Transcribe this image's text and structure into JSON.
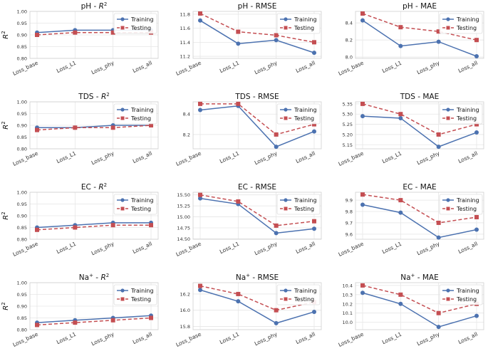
{
  "series_names": [
    "Training",
    "Testing"
  ],
  "colors": {
    "training": "#4c72b0",
    "testing": "#c44e52",
    "grid": "#e6e6e6",
    "axis": "#333333"
  },
  "chart_data": [
    {
      "type": "line",
      "title": "pH - R^2",
      "title_main": "pH - ",
      "title_sup": "2",
      "title_math": "R",
      "ylabel": "R",
      "ylabel_sup": "2",
      "categories": [
        "Loss_base",
        "Loss_L1",
        "Loss_phy",
        "Loss_all"
      ],
      "ylim": [
        0.8,
        1.0
      ],
      "yticks": [
        0.8,
        0.85,
        0.9,
        0.95,
        1.0
      ],
      "ytick_labels": [
        "0.80",
        "0.85",
        "0.90",
        "0.95",
        "1.00"
      ],
      "series": [
        {
          "name": "Training",
          "values": [
            0.91,
            0.92,
            0.92,
            0.92
          ]
        },
        {
          "name": "Testing",
          "values": [
            0.9,
            0.91,
            0.91,
            0.91
          ]
        }
      ],
      "legend": "top-right"
    },
    {
      "type": "line",
      "title": "pH - RMSE",
      "categories": [
        "Loss_base",
        "Loss_L1",
        "Loss_phy",
        "Loss_all"
      ],
      "ylim": [
        11.17,
        11.84
      ],
      "yticks": [
        11.2,
        11.4,
        11.6,
        11.8
      ],
      "ytick_labels": [
        "11.2",
        "11.4",
        "11.6",
        "11.8"
      ],
      "series": [
        {
          "name": "Training",
          "values": [
            11.71,
            11.38,
            11.43,
            11.25
          ]
        },
        {
          "name": "Testing",
          "values": [
            11.81,
            11.55,
            11.5,
            11.4
          ]
        }
      ],
      "legend": "top-right"
    },
    {
      "type": "line",
      "title": "pH - MAE",
      "categories": [
        "Loss_base",
        "Loss_L1",
        "Loss_phy",
        "Loss_all"
      ],
      "ylim": [
        7.985,
        8.535
      ],
      "yticks": [
        8.0,
        8.2,
        8.4
      ],
      "ytick_labels": [
        "8.0",
        "8.2",
        "8.4"
      ],
      "series": [
        {
          "name": "Training",
          "values": [
            8.43,
            8.13,
            8.18,
            8.01
          ]
        },
        {
          "name": "Testing",
          "values": [
            8.51,
            8.35,
            8.3,
            8.2
          ]
        }
      ],
      "legend": "top-right"
    },
    {
      "type": "line",
      "title": "TDS - R^2",
      "title_main": "TDS - ",
      "title_sup": "2",
      "title_math": "R",
      "ylabel": "R",
      "ylabel_sup": "2",
      "categories": [
        "Loss_base",
        "Loss_L1",
        "Loss_phy",
        "Loss_all"
      ],
      "ylim": [
        0.8,
        1.0
      ],
      "yticks": [
        0.8,
        0.85,
        0.9,
        0.95,
        1.0
      ],
      "ytick_labels": [
        "0.80",
        "0.85",
        "0.90",
        "0.95",
        "1.00"
      ],
      "series": [
        {
          "name": "Training",
          "values": [
            0.89,
            0.89,
            0.9,
            0.9
          ]
        },
        {
          "name": "Testing",
          "values": [
            0.88,
            0.89,
            0.89,
            0.9
          ]
        }
      ],
      "legend": "top-right"
    },
    {
      "type": "line",
      "title": "TDS - RMSE",
      "categories": [
        "Loss_base",
        "Loss_L1",
        "Loss_phy",
        "Loss_all"
      ],
      "ylim": [
        8.06,
        8.52
      ],
      "yticks": [
        8.2,
        8.4
      ],
      "ytick_labels": [
        "8.2",
        "8.4"
      ],
      "series": [
        {
          "name": "Training",
          "values": [
            8.44,
            8.48,
            8.08,
            8.23
          ]
        },
        {
          "name": "Testing",
          "values": [
            8.5,
            8.5,
            8.2,
            8.3
          ]
        }
      ],
      "legend": "top-right"
    },
    {
      "type": "line",
      "title": "TDS - MAE",
      "categories": [
        "Loss_base",
        "Loss_L1",
        "Loss_phy",
        "Loss_all"
      ],
      "ylim": [
        5.13,
        5.36
      ],
      "yticks": [
        5.15,
        5.2,
        5.25,
        5.3,
        5.35
      ],
      "ytick_labels": [
        "5.15",
        "5.20",
        "5.25",
        "5.30",
        "5.35"
      ],
      "series": [
        {
          "name": "Training",
          "values": [
            5.29,
            5.28,
            5.14,
            5.21
          ]
        },
        {
          "name": "Testing",
          "values": [
            5.35,
            5.3,
            5.2,
            5.25
          ]
        }
      ],
      "legend": "top-right"
    },
    {
      "type": "line",
      "title": "EC - R^2",
      "title_main": "EC - ",
      "title_sup": "2",
      "title_math": "R",
      "ylabel": "R",
      "ylabel_sup": "2",
      "categories": [
        "Loss_base",
        "Loss_L1",
        "Loss_phy",
        "Loss_all"
      ],
      "ylim": [
        0.8,
        1.0
      ],
      "yticks": [
        0.8,
        0.85,
        0.9,
        0.95,
        1.0
      ],
      "ytick_labels": [
        "0.80",
        "0.85",
        "0.90",
        "0.95",
        "1.00"
      ],
      "series": [
        {
          "name": "Training",
          "values": [
            0.85,
            0.86,
            0.87,
            0.87
          ]
        },
        {
          "name": "Testing",
          "values": [
            0.84,
            0.85,
            0.86,
            0.86
          ]
        }
      ],
      "legend": "top-right"
    },
    {
      "type": "line",
      "title": "EC - RMSE",
      "categories": [
        "Loss_base",
        "Loss_L1",
        "Loss_phy",
        "Loss_all"
      ],
      "ylim": [
        14.49,
        15.56
      ],
      "yticks": [
        14.5,
        14.75,
        15.0,
        15.25,
        15.5
      ],
      "ytick_labels": [
        "14.50",
        "14.75",
        "15.00",
        "15.25",
        "15.50"
      ],
      "series": [
        {
          "name": "Training",
          "values": [
            15.42,
            15.29,
            14.63,
            14.73
          ]
        },
        {
          "name": "Testing",
          "values": [
            15.5,
            15.35,
            14.8,
            14.9
          ]
        }
      ],
      "legend": "top-right"
    },
    {
      "type": "line",
      "title": "EC - MAE",
      "categories": [
        "Loss_base",
        "Loss_L1",
        "Loss_phy",
        "Loss_all"
      ],
      "ylim": [
        9.555,
        9.97
      ],
      "yticks": [
        9.6,
        9.7,
        9.8,
        9.9
      ],
      "ytick_labels": [
        "9.6",
        "9.7",
        "9.8",
        "9.9"
      ],
      "series": [
        {
          "name": "Training",
          "values": [
            9.86,
            9.79,
            9.57,
            9.64
          ]
        },
        {
          "name": "Testing",
          "values": [
            9.95,
            9.9,
            9.7,
            9.75
          ]
        }
      ],
      "legend": "top-right"
    },
    {
      "type": "line",
      "title": "Na+ - R^2",
      "title_main": "Na",
      "title_ion": "+",
      "title_rest": " - ",
      "title_sup": "2",
      "title_math": "R",
      "ylabel": "R",
      "ylabel_sup": "2",
      "categories": [
        "Loss_base",
        "Loss_L1",
        "Loss_phy",
        "Loss_all"
      ],
      "ylim": [
        0.8,
        1.0
      ],
      "yticks": [
        0.8,
        0.85,
        0.9,
        0.95,
        1.0
      ],
      "ytick_labels": [
        "0.80",
        "0.85",
        "0.90",
        "0.95",
        "1.00"
      ],
      "series": [
        {
          "name": "Training",
          "values": [
            0.83,
            0.84,
            0.85,
            0.86
          ]
        },
        {
          "name": "Testing",
          "values": [
            0.82,
            0.83,
            0.84,
            0.85
          ]
        }
      ],
      "legend": "top-right"
    },
    {
      "type": "line",
      "title": "Na+ - RMSE",
      "title_main": "Na",
      "title_ion": "+",
      "title_rest": " - RMSE",
      "categories": [
        "Loss_base",
        "Loss_L1",
        "Loss_phy",
        "Loss_all"
      ],
      "ylim": [
        15.76,
        16.34
      ],
      "yticks": [
        15.8,
        16.0,
        16.2
      ],
      "ytick_labels": [
        "15.8",
        "16.0",
        "16.2"
      ],
      "series": [
        {
          "name": "Training",
          "values": [
            16.25,
            16.11,
            15.84,
            15.98
          ]
        },
        {
          "name": "Testing",
          "values": [
            16.3,
            16.2,
            16.0,
            16.1
          ]
        }
      ],
      "legend": "top-right"
    },
    {
      "type": "line",
      "title": "Na+ - MAE",
      "title_main": "Na",
      "title_ion": "+",
      "title_rest": " - MAE",
      "categories": [
        "Loss_base",
        "Loss_L1",
        "Loss_phy",
        "Loss_all"
      ],
      "ylim": [
        9.92,
        10.43
      ],
      "yticks": [
        10.0,
        10.1,
        10.2,
        10.3,
        10.4
      ],
      "ytick_labels": [
        "10.0",
        "10.1",
        "10.2",
        "10.3",
        "10.4"
      ],
      "series": [
        {
          "name": "Training",
          "values": [
            10.32,
            10.2,
            9.95,
            10.07
          ]
        },
        {
          "name": "Testing",
          "values": [
            10.4,
            10.3,
            10.1,
            10.2
          ]
        }
      ],
      "legend": "top-right"
    }
  ]
}
